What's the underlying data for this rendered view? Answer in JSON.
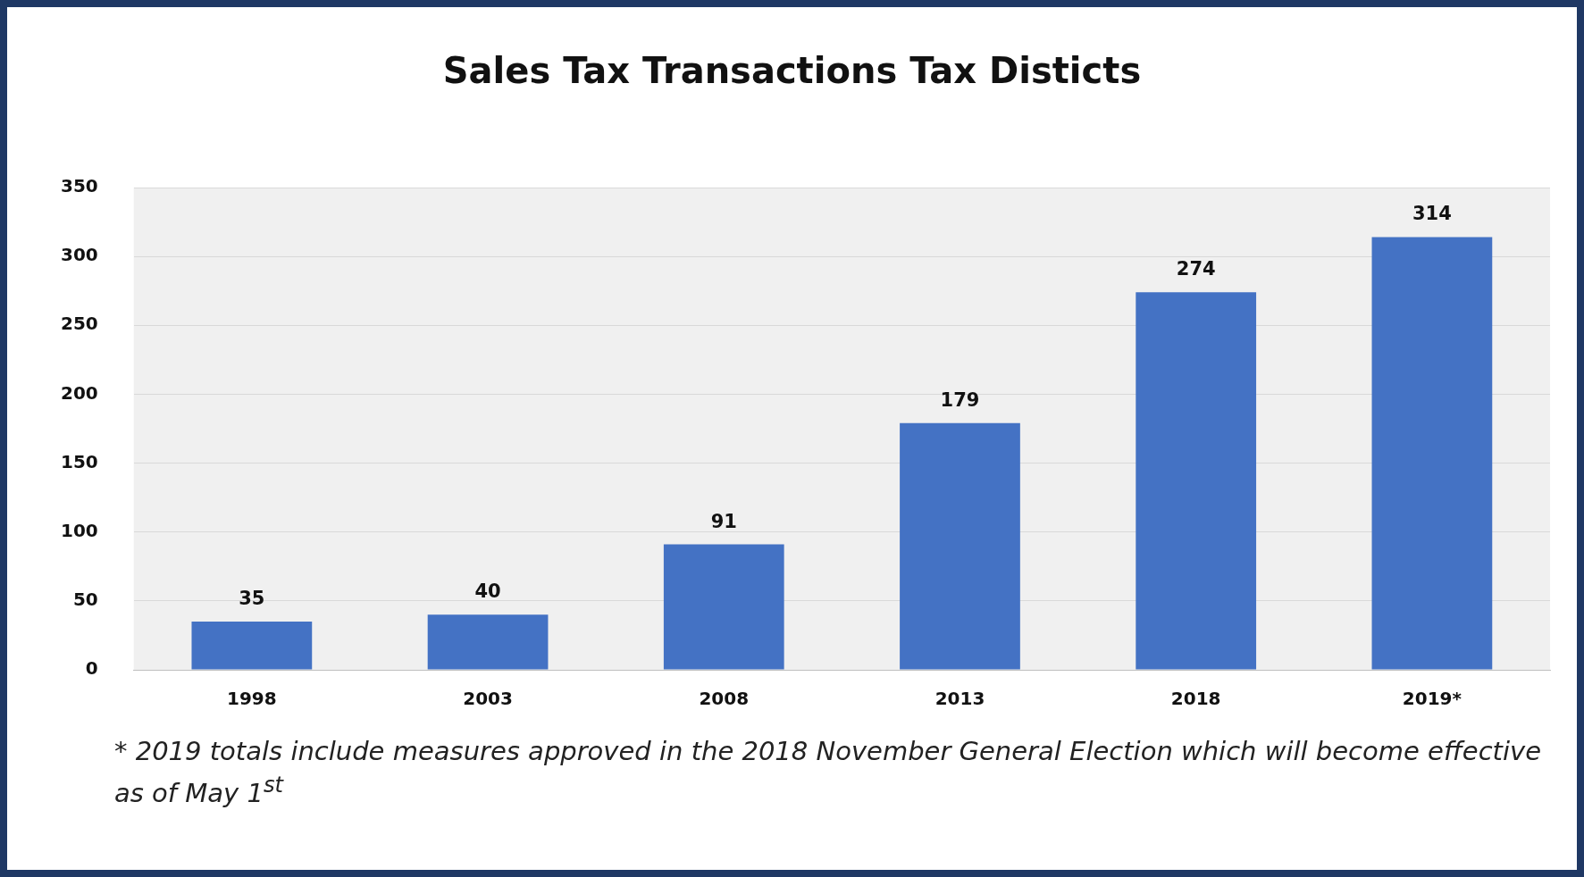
{
  "chart_data": {
    "type": "bar",
    "title": "Sales Tax Transactions Tax Disticts",
    "categories": [
      "1998",
      "2003",
      "2008",
      "2013",
      "2018",
      "2019*"
    ],
    "values": [
      35,
      40,
      91,
      179,
      274,
      314
    ],
    "color": "#4472c4",
    "ylim": [
      0,
      350
    ],
    "yticks": [
      0,
      50,
      100,
      150,
      200,
      250,
      300,
      350
    ],
    "grid": "y",
    "legend": false,
    "data_labels": true,
    "annotations": [
      "* 2019 totals include measures approved in the 2018 November General Election which will become effective as of May 1$^{st}$"
    ]
  }
}
